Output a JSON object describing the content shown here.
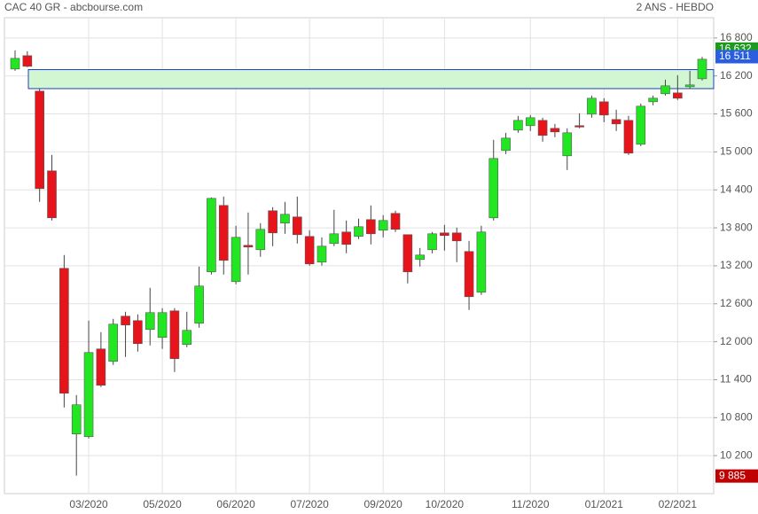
{
  "chart_data": {
    "type": "candlestick",
    "title": "CAC 40 GR - abcbourse.com",
    "subtitle": "2 ANS - HEBDO",
    "categories": [
      null,
      null,
      null,
      null,
      null,
      null,
      "03/2020",
      null,
      null,
      null,
      null,
      null,
      "05/2020",
      null,
      null,
      null,
      null,
      null,
      "06/2020",
      null,
      null,
      null,
      null,
      null,
      "07/2020",
      null,
      null,
      null,
      null,
      null,
      "09/2020",
      null,
      null,
      null,
      null,
      "10/2020",
      null,
      null,
      null,
      null,
      null,
      null,
      "11/2020",
      null,
      null,
      null,
      null,
      null,
      "01/2021",
      null,
      null,
      null,
      null,
      null,
      "02/2021",
      null,
      null
    ],
    "open": [
      16310,
      16520,
      15960,
      14700,
      13160,
      10542,
      10500,
      11886,
      11690,
      12404,
      12334,
      12194,
      12068,
      12488,
      11956,
      12292,
      13104,
      14154,
      12950,
      13524,
      13454,
      14070,
      13874,
      13972,
      13664,
      13258,
      13552,
      13734,
      13664,
      13930,
      13762,
      14028,
      13692,
      13300,
      13454,
      13720,
      13720,
      13426,
      12782,
      13958,
      15022,
      15344,
      15414,
      15498,
      15372,
      14938,
      15414,
      15596,
      15792,
      15512,
      15498,
      15120,
      15792,
      15918,
      15932,
      16030,
      16156
    ],
    "high": [
      16604,
      16590,
      16002,
      14952,
      13370,
      11158,
      12334,
      12152,
      12362,
      12474,
      12432,
      12852,
      12530,
      12530,
      12474,
      13188,
      14280,
      14294,
      13832,
      14042,
      13874,
      14126,
      14210,
      14294,
      13762,
      13650,
      14084,
      13916,
      13944,
      14154,
      14000,
      14070,
      13692,
      13482,
      13734,
      13846,
      13804,
      13594,
      13832,
      15190,
      15302,
      15568,
      15582,
      15540,
      15442,
      15372,
      15610,
      15890,
      15848,
      15666,
      15568,
      15764,
      15890,
      16142,
      16212,
      16282,
      16500
    ],
    "low": [
      16282,
      16338,
      14210,
      13916,
      10962,
      9885,
      10472,
      11284,
      11634,
      11760,
      11844,
      11942,
      11886,
      11522,
      11914,
      12222,
      13062,
      13062,
      12908,
      13062,
      13342,
      13510,
      13706,
      13552,
      13202,
      13202,
      13510,
      13398,
      13622,
      13538,
      13650,
      13734,
      12922,
      13188,
      13398,
      13440,
      13258,
      12502,
      12740,
      13916,
      14966,
      15302,
      15330,
      15162,
      15232,
      14714,
      15372,
      15540,
      15470,
      15330,
      14952,
      15092,
      15736,
      15890,
      15820,
      16002,
      16128
    ],
    "close": [
      16478,
      16352,
      14420,
      13958,
      11186,
      11004,
      11830,
      11312,
      12278,
      12264,
      11970,
      12460,
      12460,
      11732,
      12180,
      12880,
      14266,
      13286,
      13650,
      13496,
      13776,
      13720,
      14014,
      13692,
      13230,
      13510,
      13706,
      13538,
      13818,
      13706,
      13916,
      13776,
      13104,
      13370,
      13706,
      13678,
      13594,
      12712,
      13734,
      14896,
      15218,
      15498,
      15540,
      15260,
      15316,
      15302,
      15400,
      15848,
      15582,
      15442,
      14980,
      15722,
      15848,
      16044,
      15848,
      16058,
      16464
    ],
    "up_color": "#22e622",
    "down_color": "#e8141c",
    "ylim": [
      9600,
      17120
    ],
    "yticks": [
      {
        "value": 10200,
        "label": "10 200"
      },
      {
        "value": 10800,
        "label": "10 800"
      },
      {
        "value": 11400,
        "label": "11 400"
      },
      {
        "value": 12000,
        "label": "12 000"
      },
      {
        "value": 12600,
        "label": "12 600"
      },
      {
        "value": 13200,
        "label": "13 200"
      },
      {
        "value": 13800,
        "label": "13 800"
      },
      {
        "value": 14400,
        "label": "14 400"
      },
      {
        "value": 15000,
        "label": "15 000"
      },
      {
        "value": 15600,
        "label": "15 600"
      },
      {
        "value": 16200,
        "label": "16 200"
      },
      {
        "value": 16800,
        "label": "16 800"
      }
    ],
    "grid": true,
    "zone": [
      16000,
      16300
    ],
    "zone_color": "#d2f5d2",
    "price_tags": [
      {
        "value": 16632,
        "label": "16 632",
        "color": "#1e9a1e"
      },
      {
        "value": 16511,
        "label": "16 511",
        "color": "#2a5de0"
      },
      {
        "value": 9885,
        "label": "9 885",
        "color": "#c00000"
      }
    ]
  }
}
